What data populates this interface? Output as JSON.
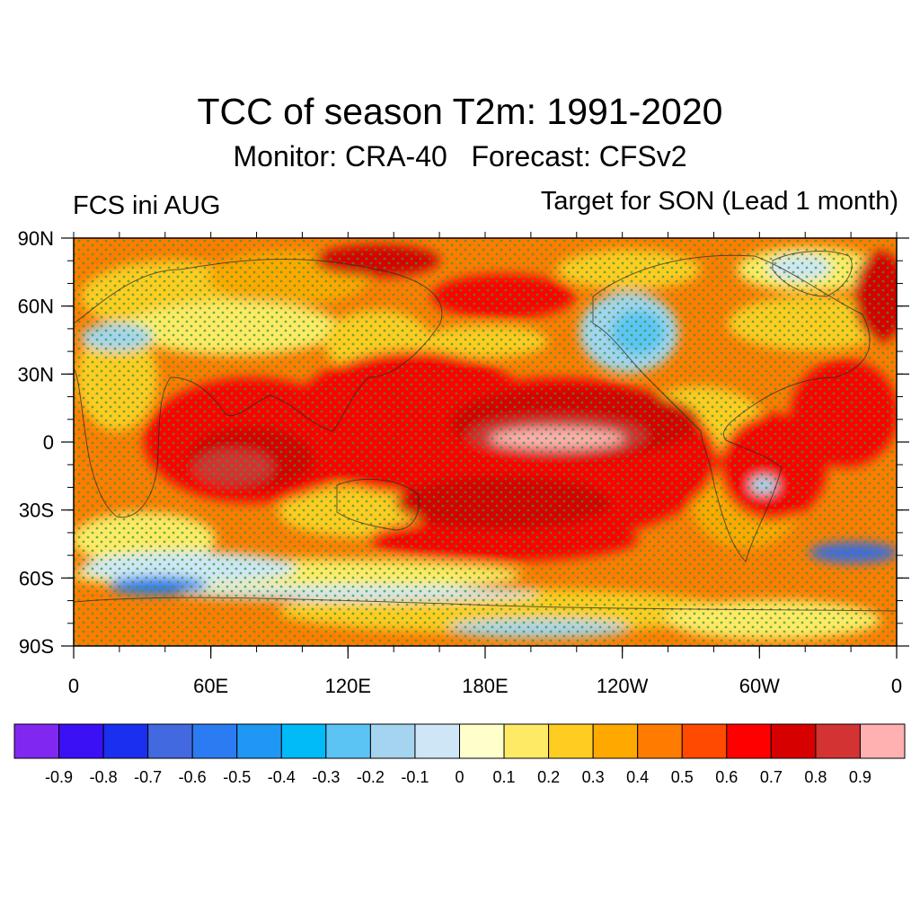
{
  "title": "TCC of season T2m: 1991-2020",
  "subtitle": "Monitor: CRA-40   Forecast: CFSv2",
  "left_label": "FCS ini AUG",
  "right_label": "Target for SON (Lead 1 month)",
  "map": {
    "lat_ticks": [
      {
        "value": 90,
        "label": "90N"
      },
      {
        "value": 60,
        "label": "60N"
      },
      {
        "value": 30,
        "label": "30N"
      },
      {
        "value": 0,
        "label": "0"
      },
      {
        "value": -30,
        "label": "30S"
      },
      {
        "value": -60,
        "label": "60S"
      },
      {
        "value": -90,
        "label": "90S"
      }
    ],
    "lon_ticks": [
      {
        "value": 0,
        "label": "0"
      },
      {
        "value": 60,
        "label": "60E"
      },
      {
        "value": 120,
        "label": "120E"
      },
      {
        "value": 180,
        "label": "180E"
      },
      {
        "value": 240,
        "label": "120W"
      },
      {
        "value": 300,
        "label": "60W"
      },
      {
        "value": 360,
        "label": "0"
      }
    ],
    "lon_range": [
      0,
      360
    ],
    "lat_range": [
      -90,
      90
    ],
    "stipple_color": "#2e9e3a",
    "field_description_regions": [
      {
        "region": "tropical-pacific-core",
        "value": 0.9
      },
      {
        "region": "indian-ocean",
        "value": 0.75
      },
      {
        "region": "north-pacific-east",
        "value": -0.3
      },
      {
        "region": "southern-ocean-south-africa",
        "value": -0.6
      },
      {
        "region": "southern-ocean-south-america",
        "value": -0.8
      }
    ]
  },
  "colorbar": {
    "colors": [
      "#8128f0",
      "#3b10f5",
      "#1a2ff0",
      "#4269e0",
      "#2b7cf2",
      "#1f98f5",
      "#00bbf8",
      "#5cc4f5",
      "#a4d4f0",
      "#cfe6f7",
      "#ffffcc",
      "#ffea66",
      "#ffcc22",
      "#ffa800",
      "#ff7c00",
      "#ff4a00",
      "#ff0000",
      "#d70000",
      "#d43333",
      "#ffb0b0"
    ],
    "labels": [
      "-0.9",
      "-0.8",
      "-0.7",
      "-0.6",
      "-0.5",
      "-0.4",
      "-0.3",
      "-0.2",
      "-0.1",
      "0",
      "0.1",
      "0.2",
      "0.3",
      "0.4",
      "0.5",
      "0.6",
      "0.7",
      "0.8",
      "0.9"
    ]
  }
}
